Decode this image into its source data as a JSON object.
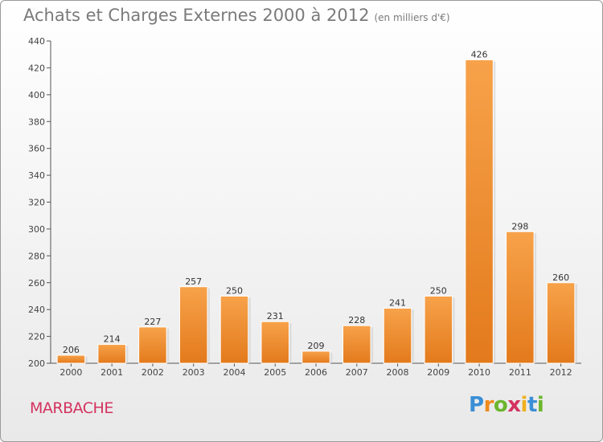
{
  "header": {
    "title": "Achats et Charges Externes 2000 à 2012",
    "subtitle": "(en milliers d'€)"
  },
  "footer": {
    "commune": "MARBACHE",
    "logo_letters": [
      "P",
      "r",
      "o",
      "x",
      "i",
      "t",
      "i"
    ],
    "logo_colors": [
      "#3a8fd6",
      "#f08a1c",
      "#6cb52d",
      "#d4325f",
      "#f0b01c",
      "#3a8fd6",
      "#6cb52d"
    ]
  },
  "chart_data": {
    "type": "bar",
    "categories": [
      "2000",
      "2001",
      "2002",
      "2003",
      "2004",
      "2005",
      "2006",
      "2007",
      "2008",
      "2009",
      "2010",
      "2011",
      "2012"
    ],
    "values": [
      206,
      214,
      227,
      257,
      250,
      231,
      209,
      228,
      241,
      250,
      426,
      298,
      260
    ],
    "ylim": [
      200,
      440
    ],
    "yticks": [
      200,
      220,
      240,
      260,
      280,
      300,
      320,
      340,
      360,
      380,
      400,
      420,
      440
    ],
    "grid": false,
    "bar_color": "#f0922e"
  }
}
